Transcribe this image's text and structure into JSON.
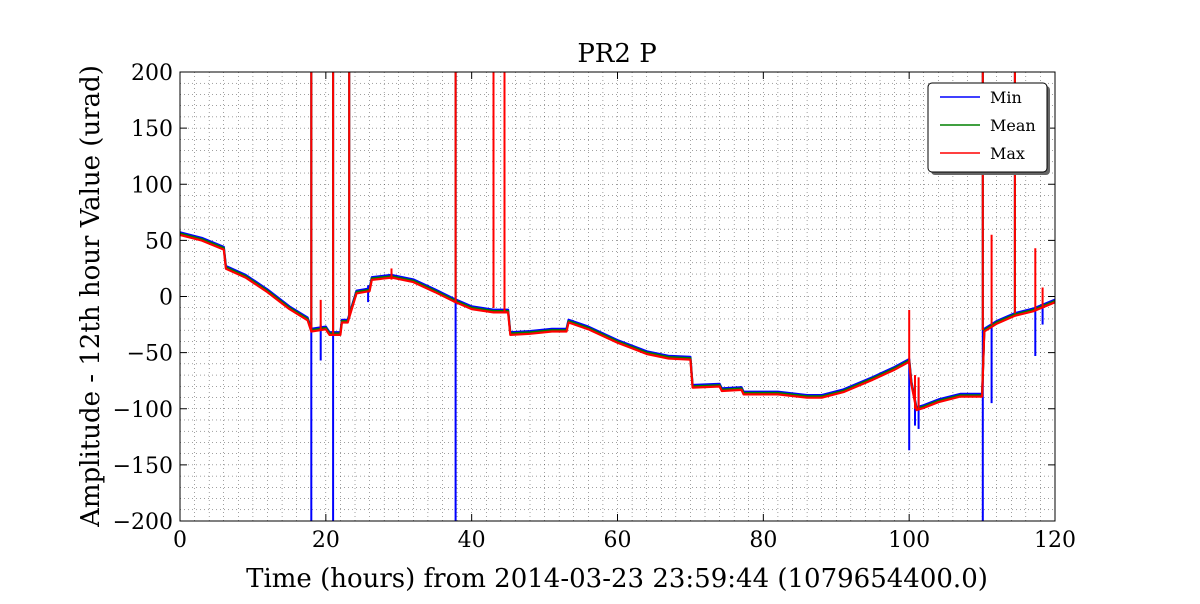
{
  "chart_data": {
    "type": "line",
    "title": "PR2 P",
    "xlabel": "Time (hours) from 2014-03-23 23:59:44 (1079654400.0)",
    "ylabel": "Amplitude - 12th hour Value (urad)",
    "xlim": [
      0,
      120
    ],
    "ylim": [
      -200,
      200
    ],
    "x_ticks": [
      0,
      20,
      40,
      60,
      80,
      100,
      120
    ],
    "y_ticks": [
      -200,
      -150,
      -100,
      -50,
      0,
      50,
      100,
      150,
      200
    ],
    "x_tick_labels": [
      "0",
      "20",
      "40",
      "60",
      "80",
      "100",
      "120"
    ],
    "y_tick_labels": [
      "−200",
      "−150",
      "−100",
      "−50",
      "0",
      "50",
      "100",
      "150",
      "200"
    ],
    "grid": true,
    "legend_position": "top-right",
    "legend": [
      "Min",
      "Mean",
      "Max"
    ],
    "colors": {
      "Min": "#0000ff",
      "Mean": "#008000",
      "Max": "#ff0000"
    },
    "baseline": [
      [
        0,
        56
      ],
      [
        3,
        51
      ],
      [
        6,
        43
      ],
      [
        6.3,
        26
      ],
      [
        9,
        18
      ],
      [
        12,
        5
      ],
      [
        15,
        -10
      ],
      [
        17.5,
        -20
      ],
      [
        18,
        -30
      ],
      [
        20,
        -28
      ],
      [
        20.5,
        -33
      ],
      [
        22,
        -33
      ],
      [
        22.2,
        -22
      ],
      [
        23,
        -22
      ],
      [
        24.2,
        4
      ],
      [
        26,
        6
      ],
      [
        26.3,
        16
      ],
      [
        29,
        18
      ],
      [
        32,
        14
      ],
      [
        35,
        5
      ],
      [
        37.5,
        -3
      ],
      [
        40,
        -10
      ],
      [
        43,
        -13
      ],
      [
        45,
        -13
      ],
      [
        45.3,
        -33
      ],
      [
        48,
        -32
      ],
      [
        51,
        -30
      ],
      [
        53,
        -30
      ],
      [
        53.3,
        -22
      ],
      [
        56,
        -28
      ],
      [
        60,
        -40
      ],
      [
        64,
        -50
      ],
      [
        67,
        -54
      ],
      [
        70,
        -55
      ],
      [
        70.3,
        -80
      ],
      [
        74,
        -79
      ],
      [
        74.3,
        -83
      ],
      [
        77,
        -82
      ],
      [
        77.3,
        -86
      ],
      [
        82,
        -86
      ],
      [
        86,
        -89
      ],
      [
        88,
        -89
      ],
      [
        91,
        -84
      ],
      [
        95,
        -73
      ],
      [
        98,
        -64
      ],
      [
        100,
        -57
      ],
      [
        100.3,
        -77
      ],
      [
        101,
        -100
      ],
      [
        102,
        -98
      ],
      [
        104,
        -93
      ],
      [
        107,
        -88
      ],
      [
        110,
        -88
      ],
      [
        110.3,
        -30
      ],
      [
        112,
        -23
      ],
      [
        114.5,
        -16
      ],
      [
        117,
        -12
      ],
      [
        120,
        -4
      ]
    ],
    "series": [
      {
        "name": "Min",
        "offset": 1.2,
        "spikes": [
          [
            18,
            200,
            -200
          ],
          [
            19.3,
            -25,
            -57
          ],
          [
            21,
            200,
            -200
          ],
          [
            23.2,
            200,
            -20
          ],
          [
            25.8,
            10,
            -5
          ],
          [
            37.8,
            200,
            -200
          ],
          [
            43,
            200,
            -10
          ],
          [
            44.5,
            200,
            -10
          ],
          [
            100,
            -60,
            -137
          ],
          [
            100.8,
            -80,
            -115
          ],
          [
            101.3,
            -80,
            -118
          ],
          [
            110.1,
            200,
            -200
          ],
          [
            111.3,
            -25,
            -95
          ],
          [
            114.5,
            200,
            -15
          ],
          [
            117.3,
            -10,
            -53
          ],
          [
            118.3,
            -10,
            -25
          ]
        ]
      },
      {
        "name": "Mean",
        "offset": 0,
        "spikes": [
          [
            18,
            200,
            -30
          ],
          [
            21,
            200,
            -33
          ],
          [
            23.2,
            200,
            -20
          ],
          [
            37.8,
            200,
            -5
          ],
          [
            43,
            200,
            -10
          ],
          [
            110.1,
            200,
            -30
          ],
          [
            114.5,
            200,
            -15
          ]
        ]
      },
      {
        "name": "Max",
        "offset": -1.2,
        "spikes": [
          [
            18,
            200,
            -30
          ],
          [
            19.3,
            -3,
            -30
          ],
          [
            21,
            200,
            -33
          ],
          [
            23.2,
            200,
            -20
          ],
          [
            29,
            25,
            15
          ],
          [
            37.8,
            200,
            -5
          ],
          [
            43,
            200,
            -10
          ],
          [
            44.5,
            200,
            -15
          ],
          [
            100,
            -12,
            -60
          ],
          [
            100.8,
            -70,
            -100
          ],
          [
            101.3,
            -72,
            -100
          ],
          [
            110.1,
            200,
            -30
          ],
          [
            111.3,
            55,
            -25
          ],
          [
            114.5,
            200,
            -15
          ],
          [
            117.3,
            43,
            -12
          ],
          [
            118.3,
            8,
            -10
          ]
        ]
      }
    ]
  }
}
